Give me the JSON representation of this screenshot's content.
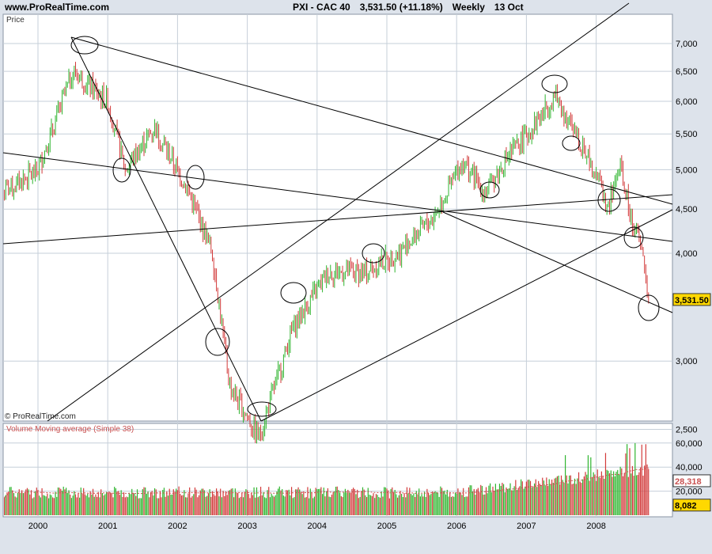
{
  "header": {
    "site": "www.ProRealTime.com",
    "instrument": "PXI - CAC 40",
    "last_price": "3,531.50 (+11.18%)",
    "period": "Weekly",
    "date": "13 Oct"
  },
  "price_panel": {
    "label": "Price",
    "copyright": "© ProRealTime.com",
    "y_ticks": [
      "7,000",
      "6,500",
      "6,000",
      "5,500",
      "5,000",
      "4,500",
      "4,000",
      "3,000",
      "2,500"
    ],
    "last_value_badge": "3,531.50"
  },
  "volume_panel": {
    "label": "Volume Moving average (Simple 38)",
    "y_ticks": [
      "60,000",
      "40,000",
      "20,000"
    ],
    "ma_badge": "28,318",
    "last_volume_badge": "8,082"
  },
  "x_ticks": [
    "2000",
    "2001",
    "2002",
    "2003",
    "2004",
    "2005",
    "2006",
    "2007",
    "2008"
  ],
  "colors": {
    "up": "#2fb52f",
    "down": "#d23a3a",
    "ma": "#c85050",
    "badge": "#ffd800",
    "grid": "#c6cfd9",
    "background": "#ffffff",
    "frame": "#dde3eb"
  },
  "chart_data": [
    {
      "type": "line",
      "title": "PXI - CAC 40",
      "period": "Weekly",
      "ylabel": "Price",
      "y_scale": "log",
      "ylim": [
        2400,
        7600
      ],
      "x": [
        "1999-07",
        "2000-01",
        "2000-07",
        "2001-01",
        "2001-04",
        "2001-09",
        "2002-03",
        "2002-07",
        "2002-10",
        "2003-03",
        "2003-09",
        "2004-03",
        "2004-09",
        "2005-03",
        "2005-09",
        "2006-02",
        "2006-06",
        "2006-10",
        "2007-02",
        "2007-06",
        "2007-08",
        "2008-01",
        "2008-03",
        "2008-05",
        "2008-07",
        "2008-09",
        "2008-10"
      ],
      "series": [
        {
          "values": [
            4700,
            5000,
            6500,
            6000,
            5000,
            5600,
            4700,
            4000,
            2800,
            2450,
            3300,
            3800,
            3800,
            4000,
            4400,
            5100,
            4700,
            5200,
            5600,
            6100,
            5700,
            5000,
            4500,
            5050,
            4400,
            4000,
            3531.5
          ]
        }
      ],
      "trendlines": 7
    },
    {
      "type": "bar",
      "title": "Volume Moving average (Simple 38)",
      "y_ticks": [
        20000,
        40000,
        60000
      ],
      "moving_average_last": 28318,
      "last_volume": 8082,
      "peak_volume": 65000
    }
  ]
}
